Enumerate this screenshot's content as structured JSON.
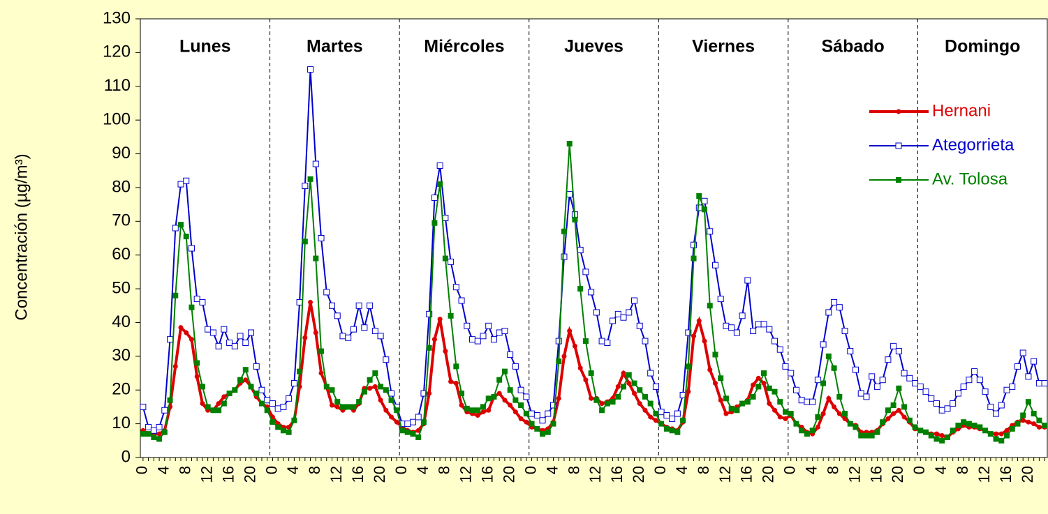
{
  "chart_data": {
    "type": "line",
    "y_label": "Concentración (µg/m³)",
    "annotations": [
      "Lunes",
      "Martes",
      "Miércoles",
      "Jueves",
      "Viernes",
      "Sábado",
      "Domingo"
    ],
    "categories": [
      "0",
      null,
      null,
      null,
      "4",
      null,
      null,
      null,
      "8",
      null,
      null,
      null,
      "12",
      null,
      null,
      null,
      "16",
      null,
      null,
      null,
      "20",
      null,
      null,
      null,
      "0",
      null,
      null,
      null,
      "4",
      null,
      null,
      null,
      "8",
      null,
      null,
      null,
      "12",
      null,
      null,
      null,
      "16",
      null,
      null,
      null,
      "20",
      null,
      null,
      null,
      "0",
      null,
      null,
      null,
      "4",
      null,
      null,
      null,
      "8",
      null,
      null,
      null,
      "12",
      null,
      null,
      null,
      "16",
      null,
      null,
      null,
      "20",
      null,
      null,
      null,
      "0",
      null,
      null,
      null,
      "4",
      null,
      null,
      null,
      "8",
      null,
      null,
      null,
      "12",
      null,
      null,
      null,
      "16",
      null,
      null,
      null,
      "20",
      null,
      null,
      null,
      "0",
      null,
      null,
      null,
      "4",
      null,
      null,
      null,
      "8",
      null,
      null,
      null,
      "12",
      null,
      null,
      null,
      "16",
      null,
      null,
      null,
      "20",
      null,
      null,
      null,
      "0",
      null,
      null,
      null,
      "4",
      null,
      null,
      null,
      "8",
      null,
      null,
      null,
      "12",
      null,
      null,
      null,
      "16",
      null,
      null,
      null,
      "20",
      null,
      null,
      null,
      "0",
      null,
      null,
      null,
      "4",
      null,
      null,
      null,
      "8",
      null,
      null,
      null,
      "12",
      null,
      null,
      null,
      "16",
      null,
      null,
      null,
      "20",
      null,
      null,
      null
    ],
    "series": [
      {
        "name": "Hernani",
        "color": "#dd0000",
        "marker": "circle",
        "values": [
          8,
          7,
          7,
          7,
          8,
          15,
          27,
          38.5,
          37,
          35,
          24,
          16,
          14,
          14,
          16,
          18,
          19,
          20,
          22,
          23,
          21,
          18,
          16,
          15,
          12,
          10,
          9,
          9,
          11,
          21,
          35.5,
          46,
          37,
          25,
          21,
          15.5,
          15,
          14,
          15,
          14,
          16,
          20.5,
          20.5,
          21,
          17,
          14,
          12,
          10.5,
          9,
          8,
          7.5,
          8,
          10,
          19,
          35,
          41,
          31.5,
          22.5,
          22,
          15.5,
          13.5,
          13,
          12.5,
          13.5,
          14,
          18,
          19,
          17,
          15.5,
          13.5,
          11.5,
          10.5,
          9,
          8.5,
          8,
          8.5,
          10.5,
          17.5,
          30,
          37.5,
          33,
          26.5,
          23,
          17.5,
          17.5,
          16,
          16.5,
          17.5,
          21,
          25,
          22,
          19,
          16,
          14,
          12,
          11,
          10,
          9,
          8.5,
          8,
          10.5,
          19.5,
          36,
          40.5,
          34.5,
          26,
          22,
          17,
          13,
          13.5,
          15,
          16,
          17,
          21.5,
          23.5,
          22,
          16,
          14,
          12,
          11.5,
          12.5,
          10,
          9,
          7.5,
          7,
          9,
          13,
          17.5,
          15,
          13,
          11.5,
          10,
          9.5,
          7.5,
          7.5,
          7.5,
          8,
          10,
          11.5,
          13,
          14,
          12,
          10.5,
          8.5,
          8,
          7.5,
          7,
          7,
          6.5,
          6,
          7.5,
          8.5,
          9.5,
          9,
          9,
          8.5,
          8,
          7,
          7,
          7,
          8,
          9.5,
          10.5,
          11,
          10.5,
          10,
          9,
          9
        ]
      },
      {
        "name": "Ategorrieta",
        "color": "#0000cc",
        "marker": "open-square",
        "values": [
          15,
          9,
          8,
          9,
          14,
          35,
          68,
          81,
          82,
          62,
          47,
          46,
          38,
          37,
          33,
          38,
          34,
          33,
          36,
          34,
          37,
          27,
          20,
          17,
          16,
          14.5,
          15,
          17.5,
          22,
          46,
          80.5,
          115,
          87,
          65,
          49,
          45,
          42,
          36,
          35.5,
          38,
          45,
          38.5,
          45,
          37.5,
          36,
          29,
          19,
          15,
          10,
          10,
          10.5,
          12,
          19,
          42.5,
          77,
          86.5,
          71,
          58,
          50.5,
          46.5,
          39,
          35,
          34.5,
          36,
          39,
          35,
          37,
          37.5,
          30.5,
          27,
          20,
          18,
          13,
          12.5,
          11,
          13,
          15.5,
          34.5,
          59.5,
          78,
          72,
          61.5,
          55,
          49,
          43,
          34.5,
          34,
          40.5,
          42.5,
          41.5,
          43,
          46.5,
          39,
          34.5,
          25,
          21,
          13.5,
          12.5,
          11.5,
          13,
          18.5,
          37,
          63,
          74,
          76,
          67,
          57,
          47,
          39,
          38.5,
          37,
          42,
          52.5,
          37.5,
          39.5,
          39.5,
          38,
          34.5,
          32,
          27,
          25,
          20,
          17,
          16.5,
          16.5,
          23,
          33.5,
          43,
          46,
          44.5,
          37.5,
          31.5,
          26,
          19,
          18,
          24,
          21,
          23,
          29,
          33,
          31.5,
          25,
          23.5,
          22,
          21,
          19.5,
          17.5,
          16,
          14,
          14.5,
          16,
          19,
          21,
          23,
          25.5,
          23,
          19.5,
          15,
          13,
          15.5,
          20,
          21,
          27,
          31,
          24,
          28.5,
          22,
          22
        ]
      },
      {
        "name": "Av. Tolosa",
        "color": "#008000",
        "marker": "square",
        "values": [
          7,
          7,
          6,
          5.5,
          7.5,
          17,
          48,
          69,
          65.5,
          44.5,
          28,
          21,
          15,
          14,
          14,
          16,
          19,
          20,
          23,
          26,
          21,
          19,
          16,
          14,
          10.5,
          9,
          8,
          7.5,
          11,
          25.5,
          64,
          82.5,
          59,
          31.5,
          21,
          20,
          16.5,
          15,
          15,
          15,
          16.5,
          19.5,
          23,
          25,
          21,
          20,
          17,
          14,
          8,
          7.5,
          7,
          6,
          10.5,
          32.5,
          69.5,
          81,
          59,
          42,
          27,
          19,
          14.5,
          14,
          14,
          15,
          17.5,
          18,
          23,
          25.5,
          20,
          17,
          15.5,
          13,
          10,
          8.5,
          7,
          7.5,
          10,
          28.5,
          67,
          93,
          70.5,
          50,
          34.5,
          25,
          17,
          14,
          16,
          16.5,
          18,
          21,
          24.5,
          22,
          20,
          18,
          16,
          13,
          10,
          8.5,
          8,
          7.5,
          11,
          27,
          59,
          77.5,
          73.5,
          45,
          30.5,
          23.5,
          17.5,
          14.5,
          14,
          16,
          16.5,
          18,
          21,
          25,
          20.5,
          19.5,
          16.5,
          13.5,
          13,
          10,
          8,
          7,
          8,
          12,
          22,
          30,
          26.5,
          18,
          13,
          10,
          9,
          6.5,
          6.5,
          6.5,
          7.5,
          10.5,
          14,
          15.5,
          20.5,
          15,
          11,
          9,
          8,
          7.5,
          6.5,
          5.5,
          5,
          6,
          8,
          9.5,
          10.5,
          10,
          9.5,
          9,
          8,
          7,
          5.5,
          5,
          6.5,
          8.5,
          10,
          12.5,
          16.5,
          13,
          11,
          9.5
        ]
      }
    ],
    "ylim": [
      0,
      130
    ],
    "yticks": [
      0,
      10,
      20,
      30,
      40,
      50,
      60,
      70,
      80,
      90,
      100,
      110,
      120,
      130
    ],
    "legend": "upper right",
    "background": "#ffffcc",
    "plot_background": "#ffffff"
  }
}
